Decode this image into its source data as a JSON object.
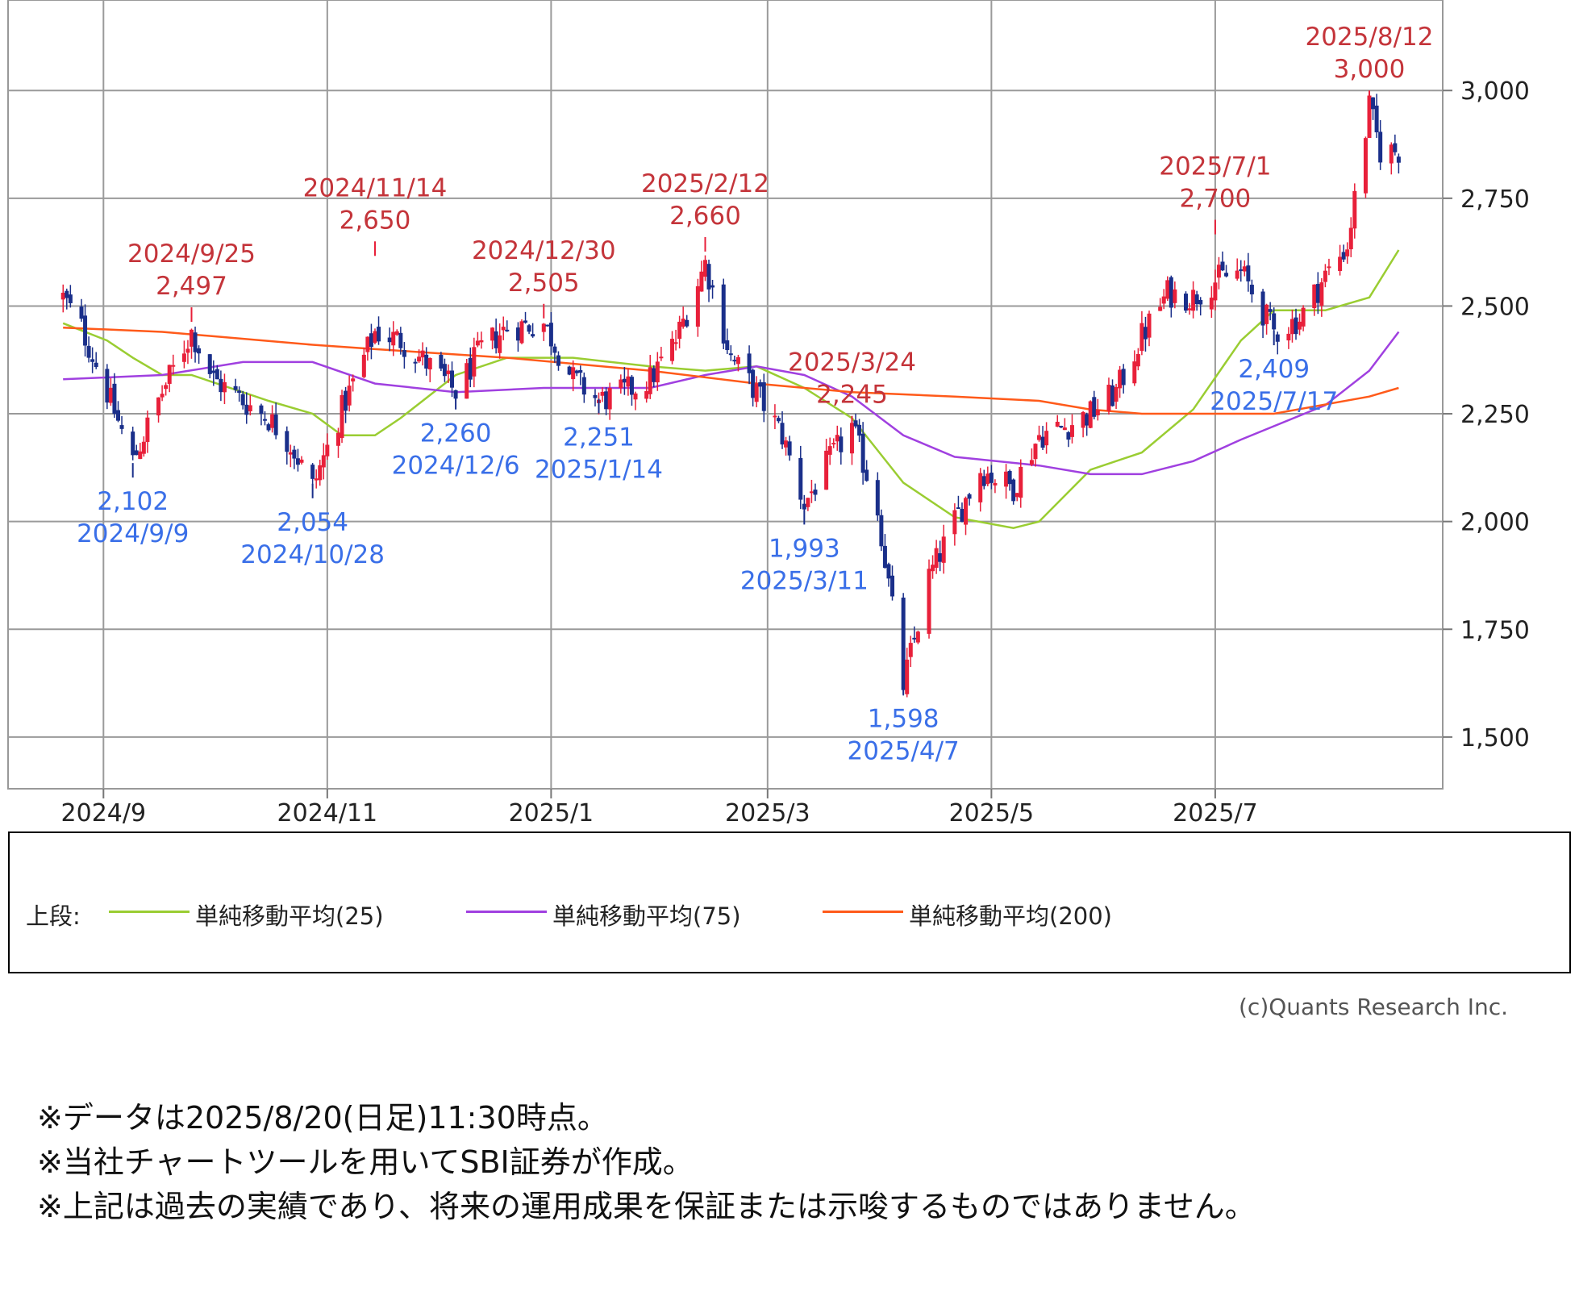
{
  "chart_data": {
    "type": "candlestick",
    "x_ticks": [
      "2024/9",
      "2024/11",
      "2025/1",
      "2025/3",
      "2025/5",
      "2025/7"
    ],
    "y_ticks": [
      3000,
      2750,
      2500,
      2250,
      2000,
      1750,
      1500
    ],
    "y_tick_labels": [
      "3,000",
      "2,750",
      "2,500",
      "2,250",
      "2,000",
      "1,750",
      "1,500"
    ],
    "ylim": [
      1380,
      3210
    ],
    "grid": true,
    "legend_position": "bottom",
    "up_color": "#e8203a",
    "down_color": "#1a2f8a",
    "anchors": [
      {
        "date": "2024/8/21",
        "close": 2520
      },
      {
        "date": "2024/8/26",
        "close": 2450
      },
      {
        "date": "2024/9/2",
        "close": 2300
      },
      {
        "date": "2024/9/9",
        "close": 2140
      },
      {
        "date": "2024/9/17",
        "close": 2300
      },
      {
        "date": "2024/9/25",
        "close": 2440
      },
      {
        "date": "2024/10/1",
        "close": 2330
      },
      {
        "date": "2024/10/9",
        "close": 2280
      },
      {
        "date": "2024/10/16",
        "close": 2240
      },
      {
        "date": "2024/10/22",
        "close": 2180
      },
      {
        "date": "2024/10/28",
        "close": 2080
      },
      {
        "date": "2024/11/5",
        "close": 2260
      },
      {
        "date": "2024/11/14",
        "close": 2440
      },
      {
        "date": "2024/11/21",
        "close": 2420
      },
      {
        "date": "2024/11/29",
        "close": 2360
      },
      {
        "date": "2024/12/6",
        "close": 2300
      },
      {
        "date": "2024/12/13",
        "close": 2400
      },
      {
        "date": "2024/12/20",
        "close": 2450
      },
      {
        "date": "2024/12/30",
        "close": 2460
      },
      {
        "date": "2025/1/7",
        "close": 2330
      },
      {
        "date": "2025/1/14",
        "close": 2280
      },
      {
        "date": "2025/1/21",
        "close": 2300
      },
      {
        "date": "2025/1/28",
        "close": 2330
      },
      {
        "date": "2025/2/4",
        "close": 2420
      },
      {
        "date": "2025/2/12",
        "close": 2600
      },
      {
        "date": "2025/2/19",
        "close": 2380
      },
      {
        "date": "2025/2/26",
        "close": 2300
      },
      {
        "date": "2025/3/5",
        "close": 2200
      },
      {
        "date": "2025/3/11",
        "close": 2040
      },
      {
        "date": "2025/3/17",
        "close": 2130
      },
      {
        "date": "2025/3/24",
        "close": 2220
      },
      {
        "date": "2025/3/31",
        "close": 2030
      },
      {
        "date": "2025/4/7",
        "close": 1620
      },
      {
        "date": "2025/4/14",
        "close": 1870
      },
      {
        "date": "2025/4/21",
        "close": 2000
      },
      {
        "date": "2025/4/28",
        "close": 2120
      },
      {
        "date": "2025/5/7",
        "close": 2080
      },
      {
        "date": "2025/5/14",
        "close": 2200
      },
      {
        "date": "2025/5/21",
        "close": 2220
      },
      {
        "date": "2025/5/28",
        "close": 2250
      },
      {
        "date": "2025/6/4",
        "close": 2300
      },
      {
        "date": "2025/6/11",
        "close": 2430
      },
      {
        "date": "2025/6/18",
        "close": 2530
      },
      {
        "date": "2025/6/25",
        "close": 2520
      },
      {
        "date": "2025/7/1",
        "close": 2560
      },
      {
        "date": "2025/7/8",
        "close": 2580
      },
      {
        "date": "2025/7/17",
        "close": 2440
      },
      {
        "date": "2025/7/24",
        "close": 2470
      },
      {
        "date": "2025/7/31",
        "close": 2570
      },
      {
        "date": "2025/8/6",
        "close": 2640
      },
      {
        "date": "2025/8/12",
        "close": 2960
      },
      {
        "date": "2025/8/15",
        "close": 2860
      },
      {
        "date": "2025/8/20",
        "close": 2860
      }
    ],
    "series": [
      {
        "name": "単純移動平均(25)",
        "color": "#9acd32",
        "points": [
          [
            "2024/8/21",
            2460
          ],
          [
            "2024/9/2",
            2420
          ],
          [
            "2024/9/9",
            2380
          ],
          [
            "2024/9/17",
            2340
          ],
          [
            "2024/9/25",
            2340
          ],
          [
            "2024/10/9",
            2300
          ],
          [
            "2024/10/16",
            2280
          ],
          [
            "2024/10/28",
            2250
          ],
          [
            "2024/11/5",
            2200
          ],
          [
            "2024/11/14",
            2200
          ],
          [
            "2024/11/21",
            2240
          ],
          [
            "2024/12/6",
            2340
          ],
          [
            "2024/12/20",
            2380
          ],
          [
            "2025/1/7",
            2380
          ],
          [
            "2025/1/28",
            2360
          ],
          [
            "2025/2/12",
            2350
          ],
          [
            "2025/2/26",
            2360
          ],
          [
            "2025/3/11",
            2310
          ],
          [
            "2025/3/24",
            2240
          ],
          [
            "2025/4/7",
            2090
          ],
          [
            "2025/4/21",
            2010
          ],
          [
            "2025/5/7",
            1985
          ],
          [
            "2025/5/14",
            2000
          ],
          [
            "2025/5/28",
            2120
          ],
          [
            "2025/6/11",
            2160
          ],
          [
            "2025/6/25",
            2260
          ],
          [
            "2025/7/8",
            2420
          ],
          [
            "2025/7/17",
            2490
          ],
          [
            "2025/7/31",
            2490
          ],
          [
            "2025/8/12",
            2520
          ],
          [
            "2025/8/20",
            2630
          ]
        ]
      },
      {
        "name": "単純移動平均(75)",
        "color": "#a040e0",
        "points": [
          [
            "2024/8/21",
            2330
          ],
          [
            "2024/9/17",
            2340
          ],
          [
            "2024/10/9",
            2370
          ],
          [
            "2024/10/28",
            2370
          ],
          [
            "2024/11/14",
            2320
          ],
          [
            "2024/12/6",
            2300
          ],
          [
            "2024/12/30",
            2310
          ],
          [
            "2025/1/28",
            2310
          ],
          [
            "2025/2/12",
            2340
          ],
          [
            "2025/2/26",
            2360
          ],
          [
            "2025/3/11",
            2340
          ],
          [
            "2025/3/24",
            2290
          ],
          [
            "2025/4/7",
            2200
          ],
          [
            "2025/4/21",
            2150
          ],
          [
            "2025/5/14",
            2130
          ],
          [
            "2025/5/28",
            2110
          ],
          [
            "2025/6/11",
            2110
          ],
          [
            "2025/6/25",
            2140
          ],
          [
            "2025/7/8",
            2190
          ],
          [
            "2025/7/31",
            2270
          ],
          [
            "2025/8/12",
            2350
          ],
          [
            "2025/8/20",
            2440
          ]
        ]
      },
      {
        "name": "単純移動平均(200)",
        "color": "#ff5a1a",
        "points": [
          [
            "2024/8/21",
            2450
          ],
          [
            "2024/9/17",
            2440
          ],
          [
            "2024/10/28",
            2410
          ],
          [
            "2024/11/14",
            2400
          ],
          [
            "2024/12/20",
            2380
          ],
          [
            "2025/1/28",
            2350
          ],
          [
            "2025/2/26",
            2320
          ],
          [
            "2025/3/24",
            2300
          ],
          [
            "2025/4/21",
            2290
          ],
          [
            "2025/5/14",
            2280
          ],
          [
            "2025/5/28",
            2260
          ],
          [
            "2025/6/11",
            2250
          ],
          [
            "2025/7/17",
            2250
          ],
          [
            "2025/8/12",
            2290
          ],
          [
            "2025/8/20",
            2310
          ]
        ]
      }
    ],
    "annotations": [
      {
        "date": "2024/9/25",
        "value": "2,497",
        "position": "high"
      },
      {
        "date": "2024/11/14",
        "value": "2,650",
        "position": "high"
      },
      {
        "date": "2024/12/30",
        "value": "2,505",
        "position": "high"
      },
      {
        "date": "2025/2/12",
        "value": "2,660",
        "position": "high"
      },
      {
        "date": "2025/3/24",
        "value": "2,245",
        "position": "high"
      },
      {
        "date": "2025/7/1",
        "value": "2,700",
        "position": "high"
      },
      {
        "date": "2025/8/12",
        "value": "3,000",
        "position": "high"
      },
      {
        "date": "2024/9/9",
        "value": "2,102",
        "position": "low"
      },
      {
        "date": "2024/10/28",
        "value": "2,054",
        "position": "low"
      },
      {
        "date": "2024/12/6",
        "value": "2,260",
        "position": "low"
      },
      {
        "date": "2025/1/14",
        "value": "2,251",
        "position": "low"
      },
      {
        "date": "2025/3/11",
        "value": "1,993",
        "position": "low"
      },
      {
        "date": "2025/4/7",
        "value": "1,598",
        "position": "low"
      },
      {
        "date": "2025/7/17",
        "value": "2,409",
        "position": "low"
      }
    ]
  },
  "legend": {
    "prefix": "上段:",
    "items": [
      "単純移動平均(25)",
      "単純移動平均(75)",
      "単純移動平均(200)"
    ],
    "colors": [
      "#9acd32",
      "#a040e0",
      "#ff5a1a"
    ]
  },
  "credit": "(c)Quants Research Inc.",
  "notes": [
    "※データは2025/8/20(日足)11:30時点。",
    "※当社チャートツールを用いてSBI証券が作成。",
    "※上記は過去の実績であり、将来の運用成果を保証または示唆するものではありません。"
  ]
}
